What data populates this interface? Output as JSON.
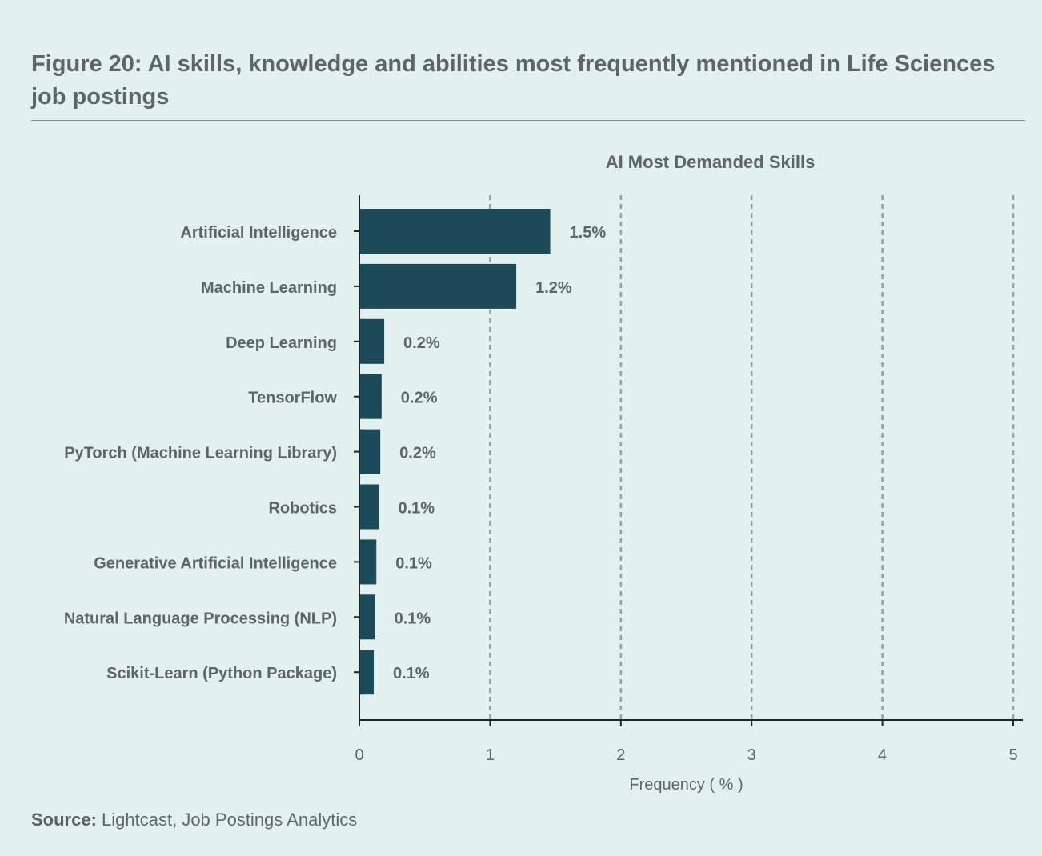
{
  "figure": {
    "label": "Figure 20:",
    "title": "AI skills, knowledge and abilities most frequently mentioned in Life Sciences job postings"
  },
  "source": {
    "label": "Source:",
    "text": "Lightcast, Job Postings Analytics"
  },
  "colors": {
    "bar": "#1d4a58",
    "background": "#e2f0ef",
    "text": "#5f6567",
    "grid": "#9a9ea0"
  },
  "chart_data": {
    "type": "bar",
    "orientation": "horizontal",
    "title": "AI Most Demanded Skills",
    "xlabel": "Frequency ( % )",
    "ylabel": "",
    "xlim": [
      0,
      5
    ],
    "xticks": [
      0,
      1,
      2,
      3,
      4,
      5
    ],
    "grid": "vertical dashed",
    "categories": [
      "Artificial Intelligence",
      "Machine Learning",
      "Deep Learning",
      "TensorFlow",
      "PyTorch (Machine Learning Library)",
      "Robotics",
      "Generative Artificial Intelligence",
      "Natural Language Processing (NLP)",
      "Scikit-Learn (Python Package)"
    ],
    "values": [
      1.46,
      1.2,
      0.19,
      0.17,
      0.16,
      0.15,
      0.13,
      0.12,
      0.11
    ],
    "value_labels": [
      "1.5%",
      "1.2%",
      "0.2%",
      "0.2%",
      "0.2%",
      "0.1%",
      "0.1%",
      "0.1%",
      "0.1%"
    ]
  }
}
